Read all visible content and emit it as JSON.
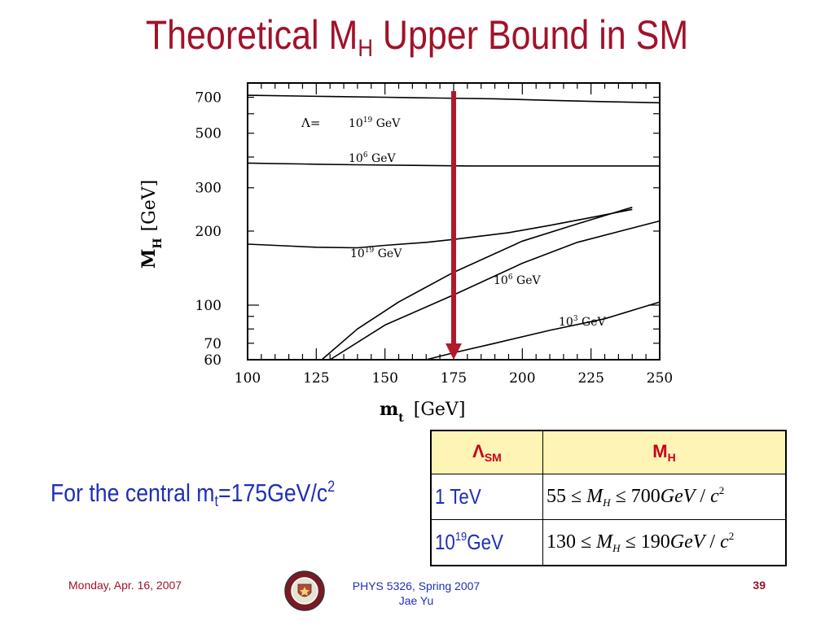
{
  "slide": {
    "title_main": "Theoretical M",
    "title_sub": "H",
    "title_rest": " Upper Bound in SM"
  },
  "chart_data": {
    "type": "line",
    "xlabel_main": "m",
    "xlabel_sub": "t",
    "xlabel_unit": "[GeV]",
    "ylabel_main": "M",
    "ylabel_sub": "H",
    "ylabel_unit": "[GeV]",
    "xlim": [
      100,
      250
    ],
    "ylim": [
      60,
      800
    ],
    "y_scale": "log",
    "x_ticks": [
      "100",
      "125",
      "150",
      "175",
      "200",
      "225",
      "250"
    ],
    "y_ticks": [
      "700",
      "500",
      "300",
      "200",
      "100",
      "70",
      "60"
    ],
    "legend_prefix": "Λ=",
    "series": [
      {
        "name": "10¹⁹ GeV",
        "label_base": "10",
        "label_exp": "19",
        "label_unit": " GeV",
        "x": [
          100,
          130,
          150,
          170,
          190,
          210,
          230,
          250
        ],
        "y": [
          713,
          705,
          700,
          695,
          690,
          680,
          672,
          665
        ]
      },
      {
        "name": "10⁶ GeV",
        "label_base": "10",
        "label_exp": "6",
        "label_unit": " GeV",
        "x": [
          100,
          120,
          140,
          160,
          180,
          200,
          220,
          240,
          250
        ],
        "y": [
          378,
          375,
          372,
          370,
          368,
          368,
          368,
          368,
          368
        ]
      },
      {
        "name": "10¹⁹ GeV",
        "label_base": "10",
        "label_exp": "19",
        "label_unit": " GeV",
        "x": [
          100,
          110,
          125,
          140,
          150,
          165,
          175,
          195,
          210,
          225,
          240
        ],
        "y": [
          177,
          175,
          172,
          171,
          175,
          180,
          185,
          197,
          211,
          227,
          245
        ]
      },
      {
        "name": "",
        "label_base": "",
        "label_exp": "",
        "label_unit": "",
        "x": [
          127,
          140,
          155,
          175,
          200,
          220,
          240
        ],
        "y": [
          60,
          80,
          103,
          136,
          182,
          214,
          250
        ]
      },
      {
        "name": "10⁶ GeV",
        "label_base": "10",
        "label_exp": "6",
        "label_unit": " GeV",
        "x": [
          130,
          150,
          175,
          200,
          220,
          250
        ],
        "y": [
          60,
          83,
          110,
          148,
          180,
          220
        ]
      },
      {
        "name": "10³ GeV",
        "label_base": "10",
        "label_exp": "3",
        "label_unit": " GeV",
        "x": [
          165,
          175,
          190,
          210,
          230,
          250
        ],
        "y": [
          60,
          64,
          70,
          79,
          88,
          103
        ]
      }
    ],
    "marker": {
      "x": 175,
      "color": "#b2182b"
    }
  },
  "note": {
    "prefix": "For the central m",
    "sub": "t",
    "mid": "=175GeV/c",
    "sup": "2"
  },
  "table": {
    "header_lambda": "Λ",
    "header_lambda_sub": "SM",
    "header_mh": "M",
    "header_mh_sub": "H",
    "rows": [
      {
        "label": "1 TeV",
        "label_sup": "",
        "label_unit": "",
        "low": "55",
        "high": "700",
        "unit": "GeV",
        "unit2": "c",
        "exp": "2"
      },
      {
        "label": "10",
        "label_sup": "19",
        "label_unit": "GeV",
        "low": "130",
        "high": "190",
        "unit": "GeV",
        "unit2": "c",
        "exp": "2"
      }
    ],
    "le": "≤",
    "var": "M",
    "var_sub": "H"
  },
  "footer": {
    "date": "Monday, Apr. 16, 2007",
    "course": "PHYS 5326, Spring 2007",
    "author": "Jae Yu",
    "page": "39"
  },
  "colors": {
    "title": "#a1122a",
    "blue_text": "#1f2fb5",
    "table_header_bg": "#fdf4b6",
    "marker": "#b2182b"
  }
}
